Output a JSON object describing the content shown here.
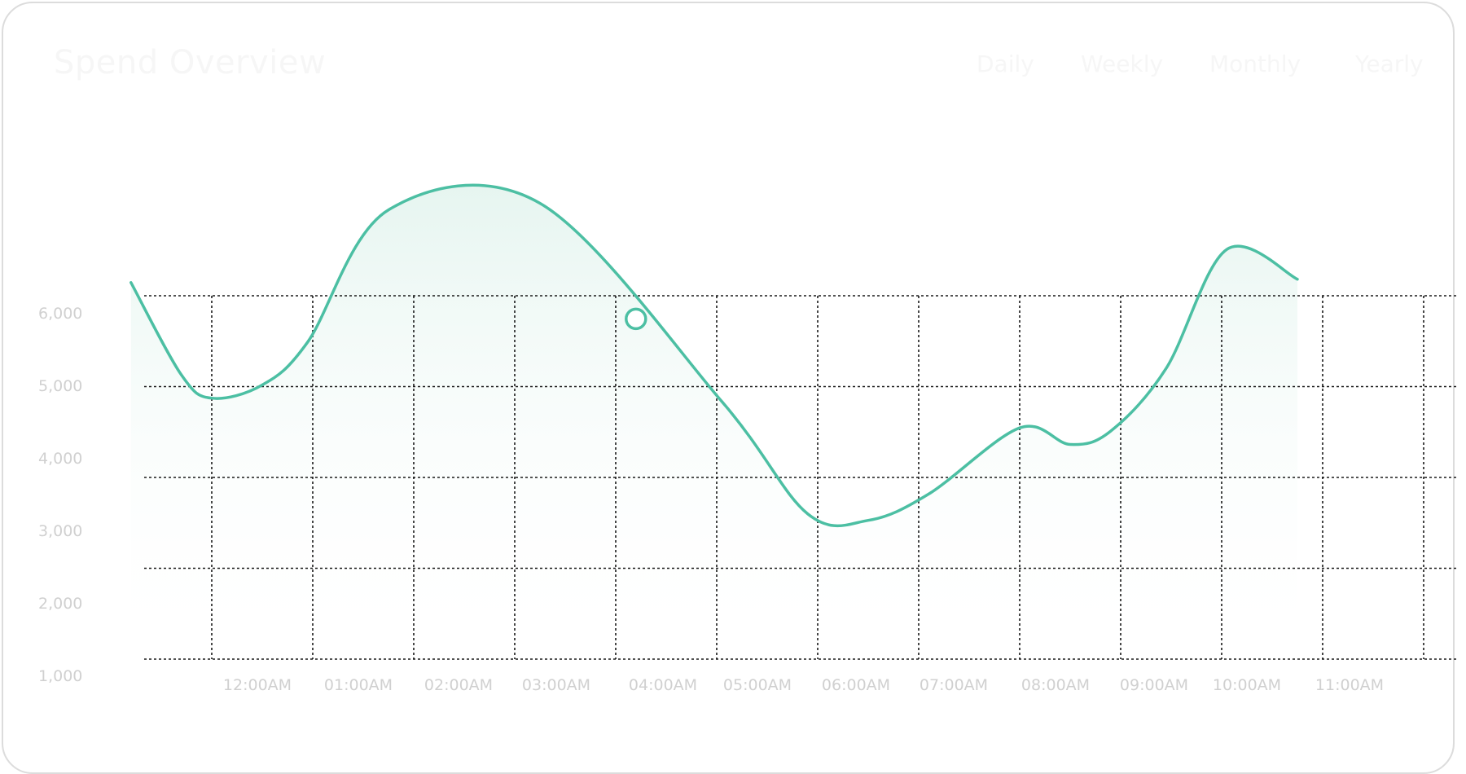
{
  "card": {
    "title": "Spend Overview",
    "tabs": [
      {
        "label": "Daily"
      },
      {
        "label": "Weekly"
      },
      {
        "label": "Monthly"
      },
      {
        "label": "Yearly"
      }
    ]
  },
  "colors": {
    "line": "#4cbfa3",
    "area_top": "#e6f5f0",
    "grid": "#1a1a1a",
    "tick_text": "#d0d0d0"
  },
  "chart_data": {
    "type": "area",
    "title": "",
    "xlabel": "",
    "ylabel": "",
    "y_ticks": [
      "1,000",
      "2,000",
      "3,000",
      "4,000",
      "5,000",
      "6,000"
    ],
    "ylim": [
      1000,
      6500
    ],
    "grid": true,
    "x_ticks": [
      "12:00AM",
      "01:00AM",
      "02:00AM",
      "03:00AM",
      "04:00AM",
      "05:00AM",
      "06:00AM",
      "07:00AM",
      "08:00AM",
      "09:00AM",
      "10:00AM",
      "11:00AM"
    ],
    "series": [
      {
        "x": [
          -0.8,
          -0.3,
          0.0,
          0.5,
          0.95,
          1.75,
          3.25,
          5.05,
          5.9,
          6.5,
          7.1,
          8.0,
          8.5,
          8.9,
          9.45,
          10.05,
          10.75
        ],
        "values": [
          6700,
          5300,
          4950,
          5150,
          5800,
          7800,
          7900,
          4900,
          3200,
          3100,
          3500,
          4500,
          4250,
          4450,
          5400,
          7200,
          6750
        ]
      }
    ],
    "highlight": {
      "x": 4.2,
      "value": 6150
    }
  }
}
